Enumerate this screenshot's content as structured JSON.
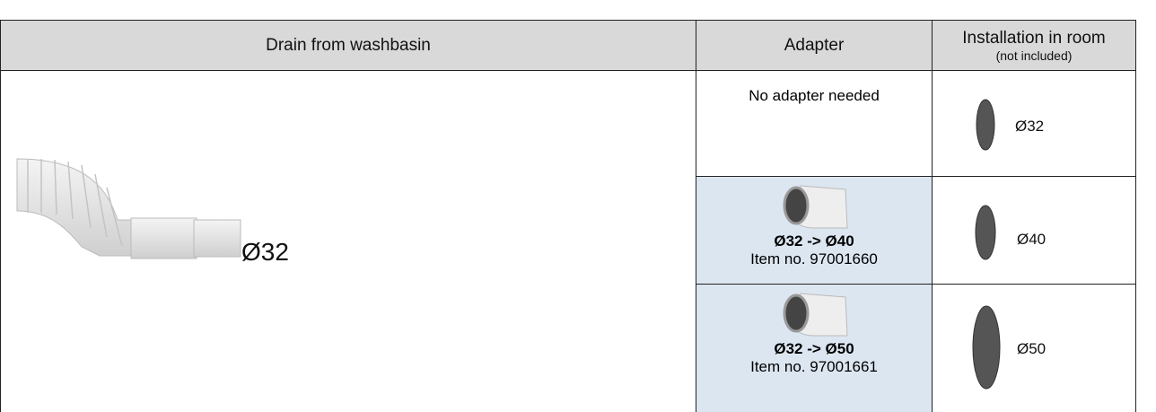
{
  "table": {
    "header": {
      "drain": "Drain from washbasin",
      "adapter": "Adapter",
      "installation": "Installation in room",
      "installation_note": "(not included)"
    },
    "drain_label": "Ø32",
    "adapters": [
      {
        "text": "No adapter needed"
      },
      {
        "title": "Ø32 -> Ø40",
        "item": "Item no. 97001660"
      },
      {
        "title": "Ø32 -> Ø50",
        "item": "Item no. 97001661"
      }
    ],
    "installation": [
      "Ø32",
      "Ø40",
      "Ø50"
    ]
  }
}
